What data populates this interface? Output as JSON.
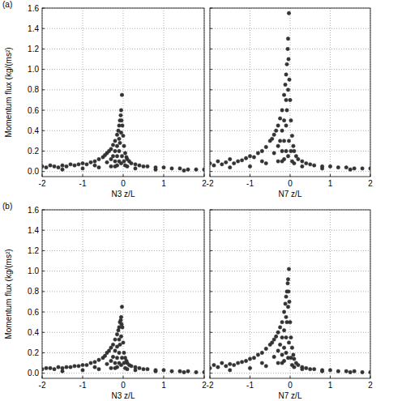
{
  "chart_data": [
    {
      "type": "scatter",
      "title": "(a)",
      "x_label": "N3 z/L",
      "y_label": "Momentum flux (kg/(ms²)",
      "color": "#333333",
      "marker": "circle",
      "grid": true,
      "xlim": [
        -2,
        2
      ],
      "xticks": [
        -2,
        -1,
        0,
        1,
        2
      ],
      "ylim": [
        -0.05,
        1.6
      ],
      "yticks": [
        {
          "value": 0,
          "label": "0.0"
        },
        0.2,
        0.4,
        0.6,
        0.8,
        {
          "value": 1,
          "label": "1.0"
        },
        1.2,
        1.4,
        1.6
      ],
      "x": [
        -2,
        -1.9,
        -1.8,
        -1.7,
        -1.6,
        -1.5,
        -1.4,
        -1.3,
        -1.2,
        -1.1,
        -1,
        -0.9,
        -0.8,
        -0.7,
        -0.6,
        -0.5,
        -0.45,
        -0.4,
        -0.35,
        -0.3,
        -0.3,
        -0.25,
        -0.25,
        -0.2,
        -0.2,
        -0.2,
        -0.15,
        -0.15,
        -0.15,
        -0.12,
        -0.1,
        -0.1,
        -0.1,
        -0.08,
        -0.06,
        -0.05,
        -0.04,
        -0.03,
        -0.02,
        -0.05,
        -0.08,
        0,
        0.02,
        0.05,
        0.08,
        0.1,
        0.15,
        0.2,
        0.3,
        0.4,
        0.5,
        0.6,
        0.8,
        1,
        1.2,
        1.4,
        1.6,
        1.8,
        2,
        -1.5,
        -1,
        -0.6,
        -0.3,
        -0.15,
        -0.05,
        0.05,
        0.3,
        0.8,
        1.5,
        -0.7,
        -0.4,
        -0.2,
        -0.1,
        -0.03,
        0.02,
        0.1
      ],
      "values": [
        0.05,
        0.04,
        0.06,
        0.05,
        0.04,
        0.06,
        0.05,
        0.07,
        0.06,
        0.07,
        0.08,
        0.07,
        0.09,
        0.1,
        0.12,
        0.14,
        0.16,
        0.18,
        0.2,
        0.22,
        0.12,
        0.26,
        0.15,
        0.3,
        0.2,
        0.1,
        0.36,
        0.25,
        0.15,
        0.4,
        0.45,
        0.32,
        0.2,
        0.5,
        0.55,
        0.6,
        0.5,
        0.75,
        0.45,
        0.38,
        0.28,
        0.35,
        0.25,
        0.18,
        0.14,
        0.12,
        0.1,
        0.08,
        0.07,
        0.06,
        0.05,
        0.05,
        0.04,
        0.04,
        0.03,
        0.03,
        0.02,
        0.02,
        0.02,
        0.02,
        0.03,
        0.04,
        0.05,
        0.06,
        0.08,
        0.06,
        0.03,
        0.02,
        0.01,
        0.06,
        0.09,
        0.05,
        0.1,
        0.15,
        0.1,
        0.05
      ]
    },
    {
      "type": "scatter",
      "x_label": "N7 z/L",
      "color": "#333333",
      "marker": "circle",
      "grid": true,
      "tick_labels": "x",
      "xlim": [
        -2,
        2
      ],
      "xticks": [
        -2,
        -1,
        0,
        1,
        2
      ],
      "ylim": [
        -0.05,
        1.6
      ],
      "yticks": [
        {
          "value": 0,
          "label": "0.0"
        },
        0.2,
        0.4,
        0.6,
        0.8,
        {
          "value": 1,
          "label": "1.0"
        },
        1.2,
        1.4,
        1.6
      ],
      "x": [
        -2,
        -1.9,
        -1.8,
        -1.7,
        -1.6,
        -1.5,
        -1.4,
        -1.3,
        -1.2,
        -1.1,
        -1,
        -0.9,
        -0.8,
        -0.7,
        -0.6,
        -0.5,
        -0.45,
        -0.4,
        -0.35,
        -0.3,
        -0.3,
        -0.25,
        -0.25,
        -0.2,
        -0.2,
        -0.2,
        -0.15,
        -0.15,
        -0.15,
        -0.12,
        -0.1,
        -0.1,
        -0.1,
        -0.08,
        -0.06,
        -0.05,
        -0.04,
        -0.03,
        -0.02,
        -0.05,
        -0.08,
        0,
        0.02,
        0.05,
        0.08,
        0.1,
        0.15,
        0.2,
        0.3,
        0.4,
        0.5,
        0.6,
        0.8,
        1,
        1.2,
        1.4,
        1.6,
        1.8,
        2,
        -1.5,
        -1,
        -0.6,
        -0.3,
        -0.15,
        -0.05,
        0.05,
        0.3,
        0.8,
        1.5,
        -0.7,
        -0.4,
        -0.2,
        -0.1,
        -0.03,
        0.02,
        0.1
      ],
      "values": [
        0.08,
        0.06,
        0.1,
        0.07,
        0.09,
        0.12,
        0.08,
        0.1,
        0.11,
        0.13,
        0.15,
        0.14,
        0.18,
        0.2,
        0.24,
        0.3,
        0.32,
        0.36,
        0.4,
        0.45,
        0.25,
        0.52,
        0.3,
        0.6,
        0.4,
        0.2,
        0.75,
        0.5,
        0.3,
        0.85,
        0.95,
        0.7,
        0.45,
        1.05,
        1.2,
        1.3,
        1.1,
        1.55,
        0.9,
        0.8,
        0.6,
        0.7,
        0.5,
        0.35,
        0.25,
        0.2,
        0.15,
        0.12,
        0.1,
        0.08,
        0.07,
        0.06,
        0.05,
        0.05,
        0.04,
        0.04,
        0.03,
        0.03,
        0.03,
        0.04,
        0.05,
        0.08,
        0.1,
        0.12,
        0.15,
        0.1,
        0.05,
        0.03,
        0.02,
        0.1,
        0.18,
        0.1,
        0.2,
        0.3,
        0.2,
        0.08
      ]
    },
    {
      "type": "scatter",
      "title": "(b)",
      "x_label": "N3 z/L",
      "y_label": "Momentum flux (kg/(ms²)",
      "color": "#333333",
      "marker": "circle",
      "grid": true,
      "xlim": [
        -2,
        2
      ],
      "xticks": [
        -2,
        -1,
        0,
        1,
        2
      ],
      "ylim": [
        -0.05,
        1.6
      ],
      "yticks": [
        {
          "value": 0,
          "label": "0.0"
        },
        0.2,
        0.4,
        0.6,
        0.8,
        {
          "value": 1,
          "label": "1.0"
        },
        1.2,
        1.4,
        1.6
      ],
      "x": [
        -2,
        -1.9,
        -1.8,
        -1.7,
        -1.6,
        -1.5,
        -1.4,
        -1.3,
        -1.2,
        -1.1,
        -1,
        -0.9,
        -0.8,
        -0.7,
        -0.6,
        -0.5,
        -0.45,
        -0.4,
        -0.35,
        -0.3,
        -0.3,
        -0.25,
        -0.25,
        -0.2,
        -0.2,
        -0.2,
        -0.15,
        -0.15,
        -0.15,
        -0.12,
        -0.1,
        -0.1,
        -0.1,
        -0.08,
        -0.06,
        -0.05,
        -0.04,
        -0.03,
        -0.02,
        -0.05,
        -0.08,
        0,
        0.02,
        0.05,
        0.08,
        0.1,
        0.15,
        0.2,
        0.3,
        0.4,
        0.5,
        0.6,
        0.8,
        1,
        1.2,
        1.4,
        1.6,
        1.8,
        2,
        -1.5,
        -1,
        -0.6,
        -0.3,
        -0.15,
        -0.05,
        0.05,
        0.3,
        0.8,
        1.5,
        -0.7,
        -0.4,
        -0.2,
        -0.1,
        -0.03,
        0.02,
        0.1
      ],
      "values": [
        0.04,
        0.05,
        0.05,
        0.04,
        0.06,
        0.05,
        0.06,
        0.06,
        0.07,
        0.07,
        0.08,
        0.08,
        0.1,
        0.11,
        0.13,
        0.15,
        0.17,
        0.2,
        0.22,
        0.25,
        0.12,
        0.28,
        0.16,
        0.33,
        0.22,
        0.1,
        0.38,
        0.26,
        0.15,
        0.42,
        0.45,
        0.33,
        0.2,
        0.5,
        0.52,
        0.55,
        0.48,
        0.65,
        0.45,
        0.36,
        0.28,
        0.3,
        0.2,
        0.15,
        0.12,
        0.1,
        0.08,
        0.07,
        0.06,
        0.05,
        0.04,
        0.04,
        0.03,
        0.03,
        0.02,
        0.02,
        0.02,
        0.01,
        0.01,
        0.02,
        0.03,
        0.04,
        0.05,
        0.06,
        0.08,
        0.05,
        0.03,
        0.02,
        0.01,
        0.06,
        0.09,
        0.05,
        0.1,
        0.15,
        0.1,
        0.04
      ]
    },
    {
      "type": "scatter",
      "x_label": "N7 z/L",
      "color": "#333333",
      "marker": "circle",
      "grid": true,
      "tick_labels": "x",
      "xlim": [
        -2,
        2
      ],
      "xticks": [
        -2,
        -1,
        0,
        1,
        2
      ],
      "ylim": [
        -0.05,
        1.6
      ],
      "yticks": [
        {
          "value": 0,
          "label": "0.0"
        },
        0.2,
        0.4,
        0.6,
        0.8,
        {
          "value": 1,
          "label": "1.0"
        },
        1.2,
        1.4,
        1.6
      ],
      "x": [
        -2,
        -1.9,
        -1.8,
        -1.7,
        -1.6,
        -1.5,
        -1.4,
        -1.3,
        -1.2,
        -1.1,
        -1,
        -0.9,
        -0.8,
        -0.7,
        -0.6,
        -0.5,
        -0.45,
        -0.4,
        -0.35,
        -0.3,
        -0.3,
        -0.25,
        -0.25,
        -0.2,
        -0.2,
        -0.2,
        -0.15,
        -0.15,
        -0.15,
        -0.12,
        -0.1,
        -0.1,
        -0.1,
        -0.08,
        -0.06,
        -0.05,
        -0.04,
        -0.03,
        -0.02,
        -0.05,
        -0.08,
        0,
        0.02,
        0.05,
        0.08,
        0.1,
        0.15,
        0.2,
        0.3,
        0.4,
        0.5,
        0.6,
        0.8,
        1,
        1.2,
        1.4,
        1.6,
        1.8,
        2,
        -1.5,
        -1,
        -0.6,
        -0.3,
        -0.15,
        -0.05,
        0.05,
        0.3,
        0.8,
        1.5,
        -0.7,
        -0.4,
        -0.2,
        -0.1,
        -0.03,
        0.02,
        0.1
      ],
      "values": [
        0.05,
        0.08,
        0.06,
        0.1,
        0.07,
        0.09,
        0.08,
        0.1,
        0.11,
        0.12,
        0.14,
        0.15,
        0.18,
        0.2,
        0.24,
        0.28,
        0.3,
        0.33,
        0.36,
        0.4,
        0.22,
        0.45,
        0.28,
        0.5,
        0.35,
        0.18,
        0.6,
        0.42,
        0.25,
        0.68,
        0.75,
        0.55,
        0.35,
        0.8,
        0.88,
        0.92,
        0.8,
        1.02,
        0.7,
        0.65,
        0.5,
        0.5,
        0.35,
        0.25,
        0.18,
        0.14,
        0.1,
        0.08,
        0.06,
        0.05,
        0.04,
        0.04,
        0.03,
        0.03,
        0.02,
        0.02,
        0.02,
        0.01,
        0.01,
        0.03,
        0.05,
        0.07,
        0.1,
        0.12,
        0.15,
        0.08,
        0.04,
        0.02,
        0.01,
        0.1,
        0.16,
        0.1,
        0.2,
        0.3,
        0.15,
        0.06
      ]
    }
  ]
}
